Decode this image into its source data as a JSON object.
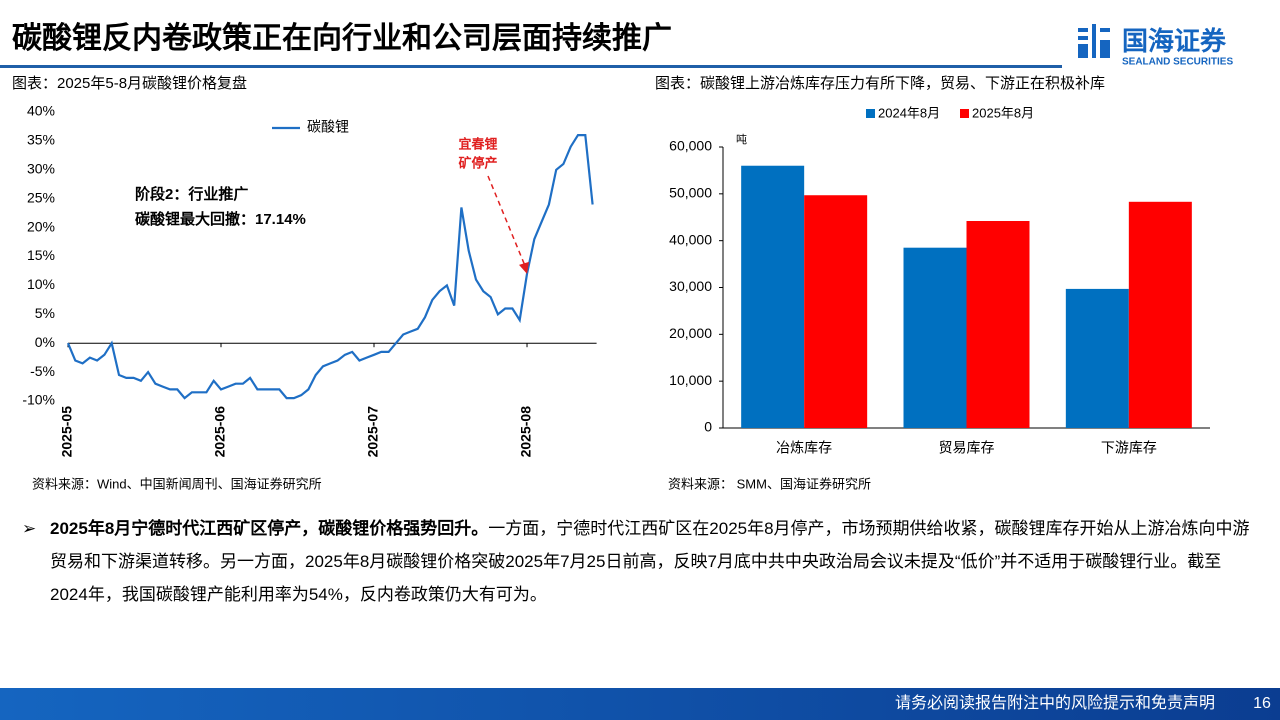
{
  "header": {
    "title": "碳酸锂反内卷政策正在向行业和公司层面持续推广",
    "logo_text": "国海证券",
    "logo_sub": "SEALAND SECURITIES"
  },
  "chart_data": [
    {
      "type": "line",
      "title": "图表：2025年5-8月碳酸锂价格复盘",
      "source": "资料来源：Wind、中国新闻周刊、国海证券研究所",
      "categories": [
        "2025-05",
        null,
        null,
        null,
        null,
        null,
        null,
        null,
        null,
        null,
        null,
        null,
        null,
        null,
        null,
        null,
        null,
        null,
        null,
        null,
        null,
        "2025-06",
        null,
        null,
        null,
        null,
        null,
        null,
        null,
        null,
        null,
        null,
        null,
        null,
        null,
        null,
        null,
        null,
        null,
        null,
        null,
        null,
        "2025-07",
        null,
        null,
        null,
        null,
        null,
        null,
        null,
        null,
        null,
        null,
        null,
        null,
        null,
        null,
        null,
        null,
        null,
        null,
        null,
        null,
        "2025-08",
        null,
        null,
        null,
        null,
        null,
        null,
        null,
        null,
        null
      ],
      "series": [
        {
          "name": "碳酸锂",
          "color": "#1f6fc5",
          "values": [
            0,
            -3,
            -3.5,
            -2.5,
            -3,
            -2,
            0,
            -5.5,
            -6,
            -6,
            -6.5,
            -5,
            -7,
            -7.5,
            -8,
            -8,
            -9.5,
            -8.5,
            -8.5,
            -8.5,
            -6.5,
            -8,
            -7.5,
            -7,
            -7,
            -6,
            -8,
            -8,
            -8,
            -8,
            -9.5,
            -9.5,
            -9,
            -8,
            -5.5,
            -4,
            -3.5,
            -3,
            -2,
            -1.5,
            -3,
            -2.5,
            -2,
            -1.5,
            -1.5,
            0,
            1.5,
            2,
            2.5,
            4.5,
            7.5,
            9,
            10,
            6.5,
            23.5,
            16,
            11,
            9,
            8,
            5,
            6,
            6,
            4,
            12,
            18,
            21,
            24,
            30,
            31,
            34,
            36,
            36,
            24
          ]
        }
      ],
      "ylim": [
        -10,
        40
      ],
      "yticks": [
        {
          "value": -10,
          "label": "-10%"
        },
        {
          "value": -5,
          "label": "-5%"
        },
        {
          "value": 0,
          "label": "0%"
        },
        {
          "value": 5,
          "label": "5%"
        },
        {
          "value": 10,
          "label": "10%"
        },
        {
          "value": 15,
          "label": "15%"
        },
        {
          "value": 20,
          "label": "20%"
        },
        {
          "value": 25,
          "label": "25%"
        },
        {
          "value": 30,
          "label": "30%"
        },
        {
          "value": 35,
          "label": "35%"
        },
        {
          "value": 40,
          "label": "40%"
        }
      ],
      "annotations": [
        {
          "text": [
            "宜春锂",
            "矿停产"
          ],
          "color": "#e02020",
          "index": 63
        },
        {
          "text": [
            "阶段2：行业推广",
            "碳酸锂最大回撤：17.14%"
          ],
          "color": "#000000"
        }
      ],
      "grid": false
    },
    {
      "type": "bar",
      "title": "图表：碳酸锂上游冶炼库存压力有所下降，贸易、下游正在积极补库",
      "source": "资料来源：  SMM、国海证券研究所",
      "y_unit": "吨",
      "categories": [
        "冶炼库存",
        "贸易库存",
        "下游库存"
      ],
      "series": [
        {
          "name": "2024年8月",
          "color": "#0070c0",
          "values": [
            56000,
            38500,
            29700
          ]
        },
        {
          "name": "2025年8月",
          "color": "#ff0000",
          "values": [
            49700,
            44200,
            48300
          ]
        }
      ],
      "ylim": [
        0,
        60000
      ],
      "yticks": [
        0,
        {
          "value": 10000,
          "label": "10,000"
        },
        {
          "value": 20000,
          "label": "20,000"
        },
        {
          "value": 30000,
          "label": "30,000"
        },
        {
          "value": 40000,
          "label": "40,000"
        },
        {
          "value": 50000,
          "label": "50,000"
        },
        {
          "value": 60000,
          "label": "60,000"
        }
      ],
      "grid": false
    }
  ],
  "body": {
    "bullet": "➢",
    "lead": "2025年8月宁德时代江西矿区停产，碳酸锂价格强势回升。",
    "text": "一方面，宁德时代江西矿区在2025年8月停产，市场预期供给收紧，碳酸锂库存开始从上游冶炼向中游贸易和下游渠道转移。另一方面，2025年8月碳酸锂价格突破2025年7月25日前高，反映7月底中共中央政治局会议未提及“低价”并不适用于碳酸锂行业。截至2024年，我国碳酸锂产能利用率为54%，反内卷政策仍大有可为。"
  },
  "footer": {
    "disclaimer": "请务必阅读报告附注中的风险提示和免责声明",
    "page": 16
  }
}
